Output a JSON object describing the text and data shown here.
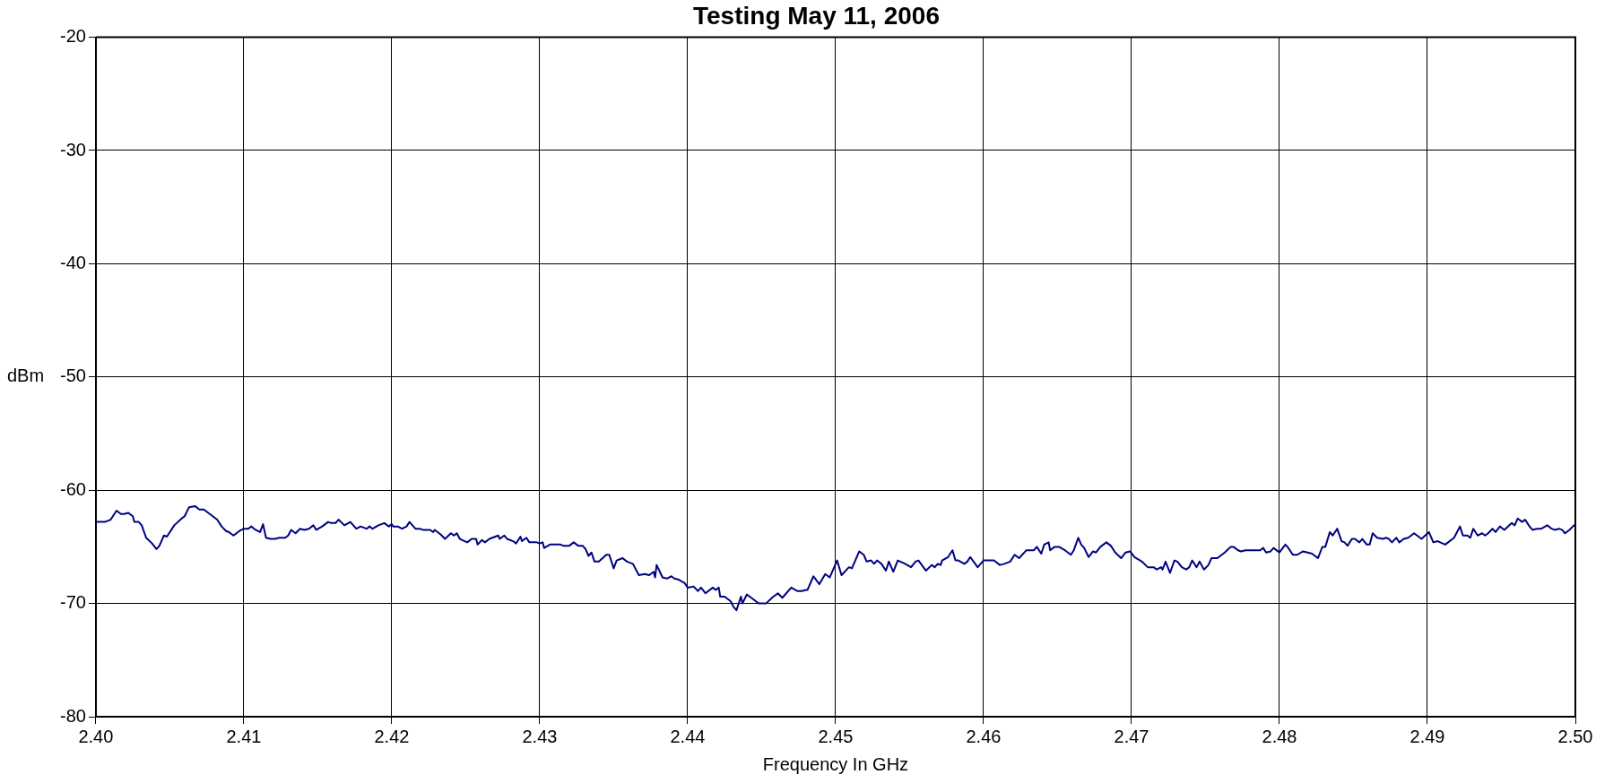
{
  "chart_data": {
    "type": "line",
    "title": "Testing May 11, 2006",
    "xlabel": "Frequency In GHz",
    "ylabel": "dBm",
    "xlim": [
      2.4,
      2.5
    ],
    "ylim": [
      -80,
      -20
    ],
    "xticks": [
      {
        "value": 2.4,
        "label": "2.40"
      },
      {
        "value": 2.41,
        "label": "2.41"
      },
      {
        "value": 2.42,
        "label": "2.42"
      },
      {
        "value": 2.43,
        "label": "2.43"
      },
      {
        "value": 2.44,
        "label": "2.44"
      },
      {
        "value": 2.45,
        "label": "2.45"
      },
      {
        "value": 2.46,
        "label": "2.46"
      },
      {
        "value": 2.47,
        "label": "2.47"
      },
      {
        "value": 2.48,
        "label": "2.48"
      },
      {
        "value": 2.49,
        "label": "2.49"
      },
      {
        "value": 2.5,
        "label": "2.50"
      }
    ],
    "yticks": [
      -80,
      -70,
      -60,
      -50,
      -40,
      -30,
      -20
    ],
    "grid": true,
    "legend": false,
    "series": [
      {
        "color": "#000080",
        "x": [
          2.4,
          2.4006,
          2.401,
          2.4014,
          2.4017,
          2.4019,
          2.4022,
          2.4025,
          2.4026,
          2.4029,
          2.4031,
          2.4034,
          2.4038,
          2.4041,
          2.4043,
          2.4046,
          2.4048,
          2.4053,
          2.4058,
          2.406,
          2.4063,
          2.4067,
          2.407,
          2.4073,
          2.4076,
          2.4079,
          2.4082,
          2.4085,
          2.4088,
          2.409,
          2.4093,
          2.4097,
          2.41,
          2.4103,
          2.4105,
          2.4108,
          2.4111,
          2.4113,
          2.4115,
          2.4118,
          2.4121,
          2.4124,
          2.4128,
          2.413,
          2.4132,
          2.4135,
          2.4138,
          2.4141,
          2.4144,
          2.4147,
          2.4149,
          2.4153,
          2.4157,
          2.4159,
          2.4162,
          2.4164,
          2.4168,
          2.4172,
          2.4176,
          2.4179,
          2.4183,
          2.4185,
          2.4187,
          2.4191,
          2.4195,
          2.4198,
          2.42,
          2.4201,
          2.4204,
          2.4207,
          2.421,
          2.4212,
          2.4216,
          2.4219,
          2.4221,
          2.4226,
          2.4228,
          2.4229,
          2.4232,
          2.4233,
          2.4236,
          2.424,
          2.4242,
          2.4244,
          2.4246,
          2.4251,
          2.4254,
          2.4257,
          2.4258,
          2.4261,
          2.4263,
          2.4266,
          2.4272,
          2.4273,
          2.4276,
          2.4278,
          2.4282,
          2.4284,
          2.4287,
          2.4288,
          2.4291,
          2.4293,
          2.4298,
          2.43,
          2.4302,
          2.4303,
          2.4307,
          2.4314,
          2.4316,
          2.432,
          2.4323,
          2.4326,
          2.4329,
          2.4331,
          2.4333,
          2.4335,
          2.4337,
          2.434,
          2.4345,
          2.4347,
          2.435,
          2.4352,
          2.4356,
          2.4359,
          2.4363,
          2.4367,
          2.4371,
          2.4374,
          2.4377,
          2.4378,
          2.4379,
          2.4383,
          2.4386,
          2.4389,
          2.4391,
          2.4394,
          2.4398,
          2.44,
          2.4404,
          2.4407,
          2.4409,
          2.4412,
          2.4417,
          2.4419,
          2.4421,
          2.4422,
          2.4425,
          2.4429,
          2.4431,
          2.4433,
          2.4436,
          2.4437,
          2.444,
          2.4445,
          2.4448,
          2.4453,
          2.4457,
          2.4461,
          2.4464,
          2.4466,
          2.447,
          2.4474,
          2.4477,
          2.448,
          2.4481,
          2.4485,
          2.4489,
          2.4493,
          2.4496,
          2.4501,
          2.4504,
          2.4509,
          2.4511,
          2.4516,
          2.4519,
          2.4521,
          2.4524,
          2.4526,
          2.4528,
          2.4531,
          2.4534,
          2.4536,
          2.4539,
          2.4542,
          2.4547,
          2.4551,
          2.4554,
          2.4556,
          2.4561,
          2.4565,
          2.4567,
          2.4569,
          2.4571,
          2.4572,
          2.4576,
          2.4579,
          2.4581,
          2.4583,
          2.4587,
          2.4589,
          2.4591,
          2.4596,
          2.46,
          2.4607,
          2.4611,
          2.4614,
          2.4618,
          2.4621,
          2.4624,
          2.4629,
          2.4634,
          2.4636,
          2.4639,
          2.4641,
          2.4644,
          2.4645,
          2.4648,
          2.4651,
          2.4655,
          2.4659,
          2.4661,
          2.4664,
          2.4666,
          2.4668,
          2.4671,
          2.4674,
          2.4676,
          2.4679,
          2.4683,
          2.4686,
          2.4689,
          2.4693,
          2.4696,
          2.4699,
          2.4702,
          2.4707,
          2.4711,
          2.4715,
          2.4717,
          2.472,
          2.4721,
          2.4723,
          2.4726,
          2.4729,
          2.4731,
          2.4734,
          2.4737,
          2.4739,
          2.4741,
          2.4744,
          2.4746,
          2.4749,
          2.4752,
          2.4754,
          2.4758,
          2.4763,
          2.4767,
          2.4769,
          2.4772,
          2.4774,
          2.4777,
          2.4787,
          2.4789,
          2.4791,
          2.4794,
          2.4796,
          2.48,
          2.4804,
          2.4806,
          2.4809,
          2.4812,
          2.4816,
          2.4819,
          2.4822,
          2.4826,
          2.4829,
          2.4831,
          2.4834,
          2.4836,
          2.4839,
          2.4842,
          2.4844,
          2.4846,
          2.4849,
          2.4851,
          2.4854,
          2.4856,
          2.4859,
          2.4861,
          2.4863,
          2.4866,
          2.487,
          2.4872,
          2.4874,
          2.4876,
          2.4879,
          2.4881,
          2.4884,
          2.4887,
          2.4891,
          2.4893,
          2.4896,
          2.4901,
          2.4904,
          2.4907,
          2.4912,
          2.4914,
          2.4918,
          2.4922,
          2.4924,
          2.4927,
          2.4929,
          2.4931,
          2.4934,
          2.4937,
          2.4939,
          2.4941,
          2.4944,
          2.4946,
          2.4949,
          2.4952,
          2.4957,
          2.4959,
          2.4961,
          2.4964,
          2.4966,
          2.4969,
          2.4971,
          2.4974,
          2.4977,
          2.4981,
          2.4984,
          2.4986,
          2.4989,
          2.4991,
          2.4993,
          2.4996,
          2.4999,
          2.5
        ],
        "values": [
          -62.8,
          -62.8,
          -62.6,
          -61.8,
          -62.1,
          -62.1,
          -62.0,
          -62.3,
          -62.8,
          -62.8,
          -63.1,
          -64.2,
          -64.7,
          -65.2,
          -64.9,
          -64.0,
          -64.1,
          -63.1,
          -62.5,
          -62.3,
          -61.5,
          -61.4,
          -61.7,
          -61.7,
          -62.0,
          -62.3,
          -62.6,
          -63.2,
          -63.6,
          -63.7,
          -64.0,
          -63.6,
          -63.4,
          -63.4,
          -63.2,
          -63.5,
          -63.7,
          -63.0,
          -64.2,
          -64.3,
          -64.3,
          -64.2,
          -64.2,
          -64.0,
          -63.5,
          -63.8,
          -63.4,
          -63.5,
          -63.4,
          -63.1,
          -63.5,
          -63.2,
          -62.8,
          -62.9,
          -62.9,
          -62.6,
          -63.1,
          -62.8,
          -63.4,
          -63.2,
          -63.4,
          -63.2,
          -63.4,
          -63.1,
          -62.9,
          -63.2,
          -63.0,
          -63.2,
          -63.2,
          -63.4,
          -63.2,
          -62.8,
          -63.4,
          -63.4,
          -63.5,
          -63.5,
          -63.7,
          -63.5,
          -63.8,
          -63.9,
          -64.3,
          -63.8,
          -64.0,
          -63.8,
          -64.3,
          -64.6,
          -64.3,
          -64.3,
          -64.8,
          -64.4,
          -64.6,
          -64.3,
          -64.0,
          -64.3,
          -64.0,
          -64.3,
          -64.5,
          -64.7,
          -64.1,
          -64.5,
          -64.2,
          -64.6,
          -64.6,
          -64.7,
          -64.6,
          -65.1,
          -64.8,
          -64.8,
          -64.9,
          -64.9,
          -64.6,
          -64.9,
          -64.9,
          -65.2,
          -65.8,
          -65.5,
          -66.3,
          -66.3,
          -65.7,
          -65.7,
          -66.9,
          -66.2,
          -66.0,
          -66.3,
          -66.5,
          -67.5,
          -67.4,
          -67.5,
          -67.2,
          -67.7,
          -66.6,
          -67.7,
          -67.8,
          -67.6,
          -67.8,
          -67.9,
          -68.2,
          -68.6,
          -68.5,
          -68.9,
          -68.6,
          -69.1,
          -68.6,
          -68.8,
          -68.6,
          -69.4,
          -69.4,
          -69.8,
          -70.3,
          -70.6,
          -69.4,
          -70.0,
          -69.2,
          -69.7,
          -70.0,
          -70.0,
          -69.5,
          -69.1,
          -69.5,
          -69.2,
          -68.6,
          -68.9,
          -68.9,
          -68.8,
          -68.8,
          -67.6,
          -68.3,
          -67.4,
          -67.7,
          -66.2,
          -67.5,
          -66.8,
          -66.9,
          -65.4,
          -65.7,
          -66.3,
          -66.2,
          -66.5,
          -66.2,
          -66.5,
          -67.1,
          -66.3,
          -67.2,
          -66.2,
          -66.5,
          -66.8,
          -66.3,
          -66.2,
          -67.1,
          -66.6,
          -66.8,
          -66.5,
          -66.6,
          -66.2,
          -65.9,
          -65.3,
          -66.2,
          -66.2,
          -66.5,
          -66.3,
          -65.9,
          -66.8,
          -66.2,
          -66.2,
          -66.6,
          -66.5,
          -66.3,
          -65.7,
          -66.0,
          -65.3,
          -65.3,
          -65.0,
          -65.6,
          -64.8,
          -64.6,
          -65.3,
          -65.0,
          -65.0,
          -65.3,
          -65.7,
          -65.3,
          -64.2,
          -64.8,
          -65.1,
          -65.9,
          -65.4,
          -65.5,
          -65.0,
          -64.6,
          -64.9,
          -65.5,
          -66.0,
          -65.5,
          -65.4,
          -65.9,
          -66.3,
          -66.8,
          -66.8,
          -67.0,
          -66.8,
          -67.0,
          -66.3,
          -67.3,
          -66.2,
          -66.3,
          -66.8,
          -67.0,
          -66.8,
          -66.2,
          -66.8,
          -66.3,
          -67.0,
          -66.6,
          -66.0,
          -66.0,
          -65.5,
          -65.0,
          -65.0,
          -65.3,
          -65.4,
          -65.3,
          -65.3,
          -65.1,
          -65.5,
          -65.4,
          -65.1,
          -65.5,
          -64.8,
          -65.1,
          -65.7,
          -65.7,
          -65.4,
          -65.5,
          -65.6,
          -66.0,
          -65.0,
          -65.0,
          -63.7,
          -64.0,
          -63.4,
          -64.5,
          -64.6,
          -64.9,
          -64.3,
          -64.3,
          -64.6,
          -64.3,
          -64.8,
          -64.8,
          -63.8,
          -64.2,
          -64.3,
          -64.2,
          -64.3,
          -64.6,
          -64.2,
          -64.6,
          -64.3,
          -64.2,
          -63.8,
          -64.0,
          -64.3,
          -63.7,
          -64.6,
          -64.5,
          -64.8,
          -64.6,
          -64.2,
          -63.2,
          -64.0,
          -64.0,
          -64.2,
          -63.4,
          -64.0,
          -63.8,
          -64.0,
          -63.8,
          -63.4,
          -63.7,
          -63.2,
          -63.5,
          -62.9,
          -63.1,
          -62.5,
          -62.8,
          -62.6,
          -63.2,
          -63.5,
          -63.4,
          -63.4,
          -63.1,
          -63.4,
          -63.5,
          -63.4,
          -63.5,
          -63.8,
          -63.5,
          -63.1,
          -63.2
        ]
      }
    ]
  }
}
